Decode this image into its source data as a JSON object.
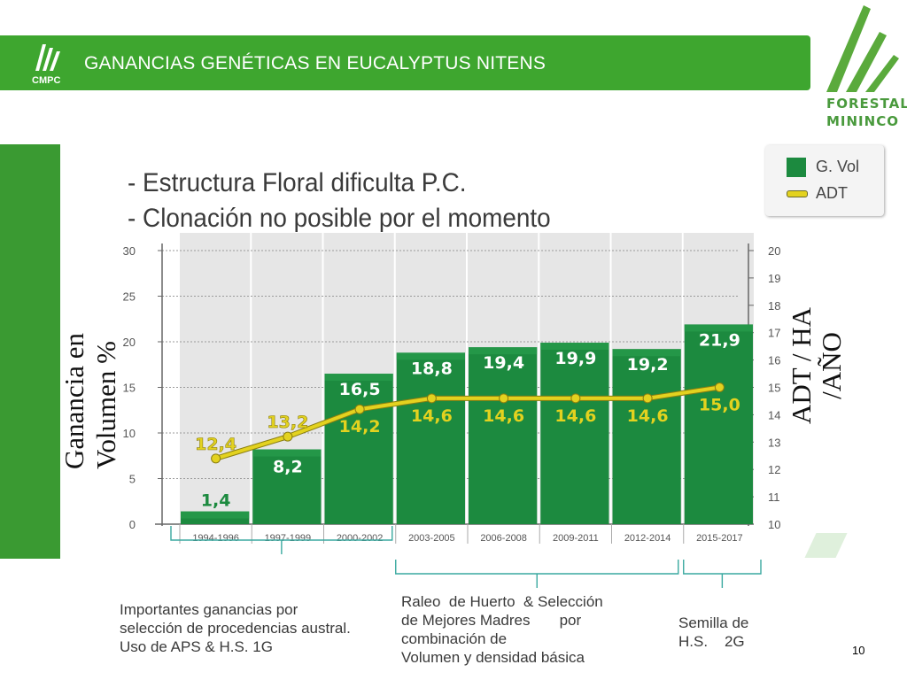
{
  "header": {
    "title": "GANANCIAS GENÉTICAS EN EUCALYPTUS NITENS",
    "logo_text": "CMPC",
    "logo_icon": "cmpc-leaf-icon"
  },
  "brand_logo": {
    "line1": "FORESTAL",
    "line2": "MININCO",
    "icon": "forestal-mininco-leaves-icon"
  },
  "bullets": [
    "- Estructura Floral dificulta P.C.",
    "- Clonación no posible por el momento"
  ],
  "colors": {
    "header_green": "#3ea62f",
    "bar_green": "#1c8a3f",
    "adt_line": "#e3d21f",
    "left_panel": "#3a9a32"
  },
  "chart_data": {
    "type": "bar",
    "categories": [
      "1994-1996",
      "1997-1999",
      "2000-2002",
      "2003-2005",
      "2006-2008",
      "2009-2011",
      "2012-2014",
      "2015-2017"
    ],
    "series": [
      {
        "name": "G. Vol",
        "type": "bar",
        "axis": "left",
        "values": [
          1.4,
          8.2,
          16.5,
          18.8,
          19.4,
          19.9,
          19.2,
          21.9
        ],
        "labels": [
          "1,4",
          "8,2",
          "16,5",
          "18,8",
          "19,4",
          "19,9",
          "19,2",
          "21,9"
        ]
      },
      {
        "name": "ADT",
        "type": "line",
        "axis": "right",
        "values": [
          12.4,
          13.2,
          14.2,
          14.6,
          14.6,
          14.6,
          14.6,
          15.0
        ],
        "labels": [
          "12,4",
          "13,2",
          "14,2",
          "14,6",
          "14,6",
          "14,6",
          "14,6",
          "15,0"
        ]
      }
    ],
    "ylabel_left": "Ganancia en Volumen  %",
    "ylabel_right": "ADT / HA /AÑO",
    "ylim_left": [
      0,
      30
    ],
    "yticks_left": [
      "0",
      "5",
      "10",
      "15",
      "20",
      "25",
      "30"
    ],
    "ylim_right": [
      10,
      20
    ],
    "yticks_right": [
      "10",
      "11",
      "12",
      "13",
      "14",
      "15",
      "16",
      "17",
      "18",
      "19",
      "20"
    ],
    "grid": true,
    "legend": {
      "position": "top-right",
      "entries": [
        "G. Vol",
        "ADT"
      ]
    }
  },
  "annotations": {
    "group1": [
      "Importantes ganancias por",
      "selección de procedencias austral.",
      "Uso de APS & H.S. 1G"
    ],
    "group2": [
      "Raleo  de Huerto  & Selección",
      "de Mejores Madres       por",
      "combinación de",
      "Volumen y densidad básica"
    ],
    "group3": [
      "Semilla de",
      "H.S.    2G"
    ]
  },
  "page_number": "10"
}
